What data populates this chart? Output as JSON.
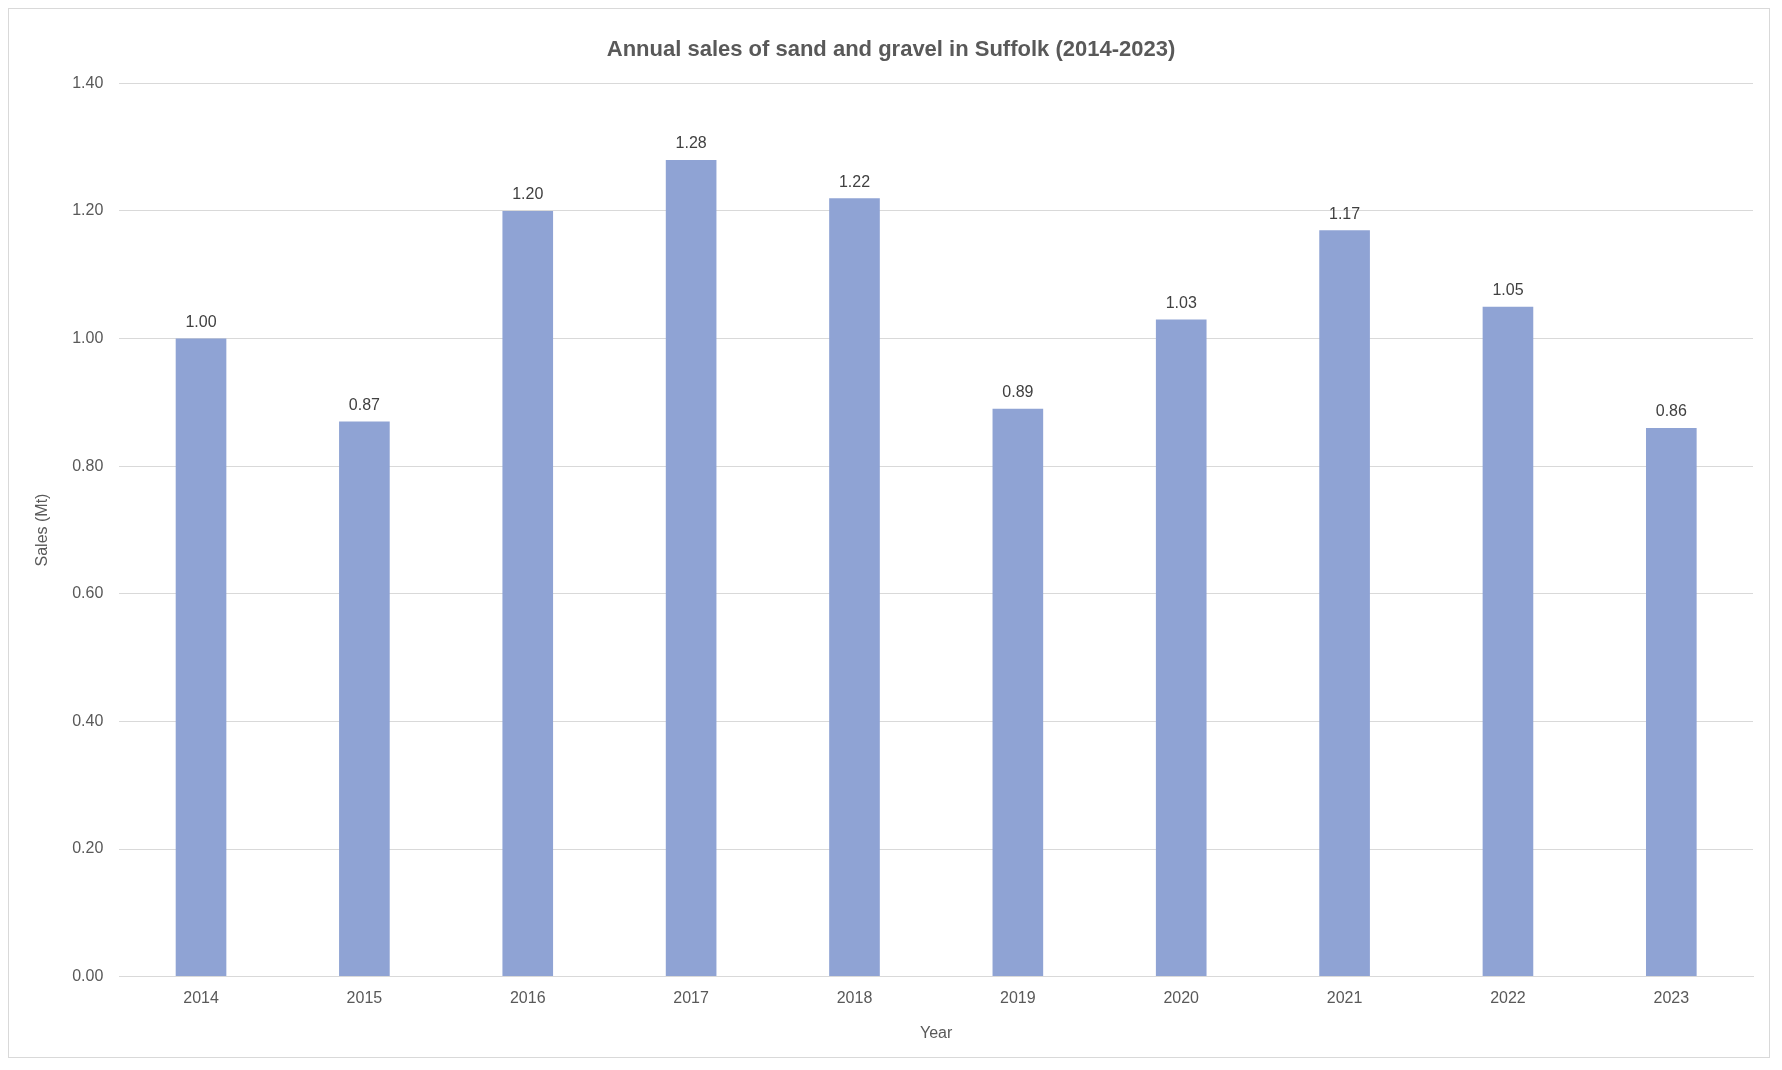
{
  "chart_data": {
    "type": "bar",
    "title": "Annual sales of sand and gravel in Suffolk (2014-2023)",
    "xlabel": "Year",
    "ylabel": "Sales (Mt)",
    "categories": [
      "2014",
      "2015",
      "2016",
      "2017",
      "2018",
      "2019",
      "2020",
      "2021",
      "2022",
      "2023"
    ],
    "values": [
      1.0,
      0.87,
      1.2,
      1.28,
      1.22,
      0.89,
      1.03,
      1.17,
      1.05,
      0.86
    ],
    "value_labels": [
      "1.00",
      "0.87",
      "1.20",
      "1.28",
      "1.22",
      "0.89",
      "1.03",
      "1.17",
      "1.05",
      "0.86"
    ],
    "color": "#8fa3d4",
    "ylim": [
      0,
      1.4
    ],
    "yticks": [
      {
        "value": 0,
        "label": "0.00"
      },
      {
        "value": 0.2,
        "label": "0.20"
      },
      {
        "value": 0.4,
        "label": "0.40"
      },
      {
        "value": 0.6,
        "label": "0.60"
      },
      {
        "value": 0.8,
        "label": "0.80"
      },
      {
        "value": 1,
        "label": "1.00"
      },
      {
        "value": 1.2,
        "label": "1.20"
      },
      {
        "value": 1.4,
        "label": "1.40"
      }
    ],
    "grid": "y"
  }
}
